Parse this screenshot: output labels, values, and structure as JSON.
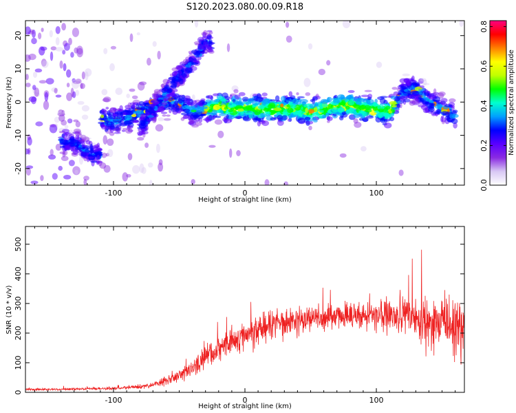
{
  "title": "S120.2023.080.00.09.R18",
  "chart_data": [
    {
      "type": "heatmap",
      "xlabel": "Height of straight line (km)",
      "ylabel": "Frequency (Hz)",
      "xlim": [
        -167,
        167
      ],
      "ylim": [
        -25,
        24.5
      ],
      "xticks": [
        -100,
        0,
        100
      ],
      "yticks": [
        -20,
        -10,
        0,
        10,
        20
      ],
      "colorbar": {
        "label": "Normalized spectral amplitude",
        "range": [
          0,
          0.83
        ],
        "ticks": [
          0.0,
          0.2,
          0.4,
          0.6,
          0.8
        ],
        "colors": [
          "#ffffff",
          "#d8c8f4",
          "#8a2be2",
          "#5a00ff",
          "#0000ff",
          "#00a0ff",
          "#00ffd0",
          "#00ff00",
          "#c0ff00",
          "#ffff00",
          "#ff8000",
          "#ff0000",
          "#ff0080"
        ]
      },
      "features": [
        {
          "name": "main-band",
          "x_range": [
            -110,
            160
          ],
          "frequency_hz": [
            [
              -110,
              -5
            ],
            [
              -100,
              -6
            ],
            [
              -90,
              -5
            ],
            [
              -80,
              -3
            ],
            [
              -70,
              -1
            ],
            [
              -60,
              0
            ],
            [
              -50,
              0
            ],
            [
              -40,
              -3
            ],
            [
              -30,
              -2
            ],
            [
              -20,
              -1
            ],
            [
              -10,
              -2
            ],
            [
              0,
              -2
            ],
            [
              10,
              -2
            ],
            [
              20,
              -2
            ],
            [
              30,
              -2
            ],
            [
              40,
              -2
            ],
            [
              50,
              -3
            ],
            [
              60,
              -2
            ],
            [
              70,
              -1
            ],
            [
              80,
              -1
            ],
            [
              90,
              -2
            ],
            [
              100,
              -2
            ],
            [
              110,
              -3
            ],
            [
              120,
              3
            ],
            [
              130,
              4
            ],
            [
              140,
              0
            ],
            [
              150,
              -2
            ],
            [
              160,
              -4
            ]
          ]
        },
        {
          "name": "rising-branch",
          "x_range": [
            -80,
            -25
          ],
          "frequency_hz": [
            [
              -80,
              -8
            ],
            [
              -70,
              -3
            ],
            [
              -60,
              3
            ],
            [
              -50,
              8
            ],
            [
              -40,
              12
            ],
            [
              -30,
              18
            ]
          ]
        },
        {
          "name": "left-blob",
          "x_range": [
            -140,
            -110
          ],
          "frequency_hz": [
            [
              -140,
              -12
            ],
            [
              -130,
              -12
            ],
            [
              -115,
              -16
            ]
          ]
        }
      ]
    },
    {
      "type": "line",
      "xlabel": "Height of straight line (km)",
      "ylabel": "SNR (10 * v/v)",
      "xlim": [
        -167,
        167
      ],
      "ylim": [
        0,
        560
      ],
      "xticks": [
        -100,
        0,
        100
      ],
      "yticks": [
        0,
        100,
        200,
        300,
        400,
        500
      ],
      "color": "#ee2020",
      "envelope": {
        "x": [
          -167,
          -140,
          -120,
          -100,
          -80,
          -70,
          -60,
          -50,
          -40,
          -30,
          -20,
          -10,
          0,
          10,
          20,
          30,
          40,
          50,
          60,
          70,
          80,
          90,
          100,
          110,
          120,
          130,
          140,
          150,
          160,
          167
        ],
        "mean": [
          10,
          10,
          12,
          13,
          18,
          25,
          40,
          55,
          80,
          120,
          150,
          170,
          195,
          215,
          230,
          240,
          245,
          250,
          255,
          255,
          260,
          260,
          262,
          260,
          255,
          250,
          240,
          230,
          220,
          215
        ],
        "spread": [
          4,
          4,
          5,
          6,
          8,
          12,
          20,
          25,
          35,
          50,
          55,
          60,
          65,
          65,
          65,
          60,
          55,
          50,
          50,
          50,
          55,
          60,
          60,
          65,
          75,
          90,
          110,
          130,
          140,
          150
        ]
      }
    }
  ]
}
